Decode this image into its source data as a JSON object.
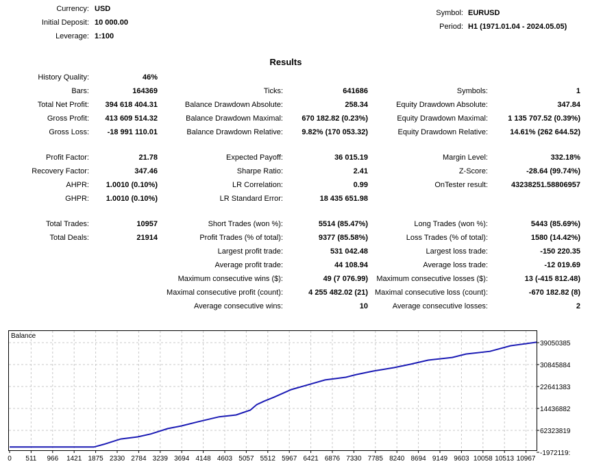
{
  "header": {
    "left": [
      {
        "label": "Currency:",
        "value": "USD"
      },
      {
        "label": "Initial Deposit:",
        "value": "10 000.00"
      },
      {
        "label": "Leverage:",
        "value": "1:100"
      }
    ],
    "right": [
      {
        "label": "Symbol:",
        "value": "EURUSD"
      },
      {
        "label": "Period:",
        "value": "H1 (1971.01.04 - 2024.05.05)"
      }
    ]
  },
  "results": {
    "title": "Results",
    "rows": [
      [
        [
          "History Quality:",
          "46%"
        ],
        null,
        null
      ],
      [
        [
          "Bars:",
          "164369"
        ],
        [
          "Ticks:",
          "641686"
        ],
        [
          "Symbols:",
          "1"
        ]
      ],
      [
        [
          "Total Net Profit:",
          "394 618 404.31"
        ],
        [
          "Balance Drawdown Absolute:",
          "258.34"
        ],
        [
          "Equity Drawdown Absolute:",
          "347.84"
        ]
      ],
      [
        [
          "Gross Profit:",
          "413 609 514.32"
        ],
        [
          "Balance Drawdown Maximal:",
          "670 182.82 (0.23%)"
        ],
        [
          "Equity Drawdown Maximal:",
          "1 135 707.52 (0.39%)"
        ]
      ],
      [
        [
          "Gross Loss:",
          "-18 991 110.01"
        ],
        [
          "Balance Drawdown Relative:",
          "9.82% (170 053.32)"
        ],
        [
          "Equity Drawdown Relative:",
          "14.61% (262 644.52)"
        ]
      ],
      [
        [
          "Profit Factor:",
          "21.78"
        ],
        [
          "Expected Payoff:",
          "36 015.19"
        ],
        [
          "Margin Level:",
          "332.18%"
        ]
      ],
      [
        [
          "Recovery Factor:",
          "347.46"
        ],
        [
          "Sharpe Ratio:",
          "2.41"
        ],
        [
          "Z-Score:",
          "-28.64 (99.74%)"
        ]
      ],
      [
        [
          "AHPR:",
          "1.0010 (0.10%)"
        ],
        [
          "LR Correlation:",
          "0.99"
        ],
        [
          "OnTester result:",
          "43238251.58806957"
        ]
      ],
      [
        [
          "GHPR:",
          "1.0010 (0.10%)"
        ],
        [
          "LR Standard Error:",
          "18 435 651.98"
        ],
        null
      ],
      [
        [
          "Total Trades:",
          "10957"
        ],
        [
          "Short Trades (won %):",
          "5514 (85.47%)"
        ],
        [
          "Long Trades (won %):",
          "5443 (85.69%)"
        ]
      ],
      [
        [
          "Total Deals:",
          "21914"
        ],
        [
          "Profit Trades (% of total):",
          "9377 (85.58%)"
        ],
        [
          "Loss Trades (% of total):",
          "1580 (14.42%)"
        ]
      ],
      [
        null,
        [
          "Largest profit trade:",
          "531 042.48"
        ],
        [
          "Largest loss trade:",
          "-150 220.35"
        ]
      ],
      [
        null,
        [
          "Average profit trade:",
          "44 108.94"
        ],
        [
          "Average loss trade:",
          "-12 019.69"
        ]
      ],
      [
        null,
        [
          "Maximum consecutive wins ($):",
          "49 (7 076.99)"
        ],
        [
          "Maximum consecutive losses ($):",
          "13 (-415 812.48)"
        ]
      ],
      [
        null,
        [
          "Maximal consecutive profit (count):",
          "4 255 482.02 (21)"
        ],
        [
          "Maximal consecutive loss (count):",
          "-670 182.82 (8)"
        ]
      ],
      [
        null,
        [
          "Average consecutive wins:",
          "10"
        ],
        [
          "Average consecutive losses:",
          "2"
        ]
      ]
    ]
  },
  "chart_data": {
    "type": "line",
    "title": "Balance",
    "x_ticks": [
      "0",
      "511",
      "966",
      "1421",
      "1875",
      "2330",
      "2784",
      "3239",
      "3694",
      "4148",
      "4603",
      "5057",
      "5512",
      "5967",
      "6421",
      "6876",
      "7330",
      "7785",
      "8240",
      "8694",
      "9149",
      "9603",
      "10058",
      "10513",
      "10967"
    ],
    "y_ticks": [
      "39050385",
      "30845884",
      "22641383",
      "14436882",
      "62323819",
      "-1972119:"
    ],
    "y_tick_values_millions": [
      390.5,
      308.46,
      226.41,
      144.37,
      62.32,
      -19.72
    ],
    "xlim": [
      0,
      11190
    ],
    "ylim_millions": [
      -19.72,
      410
    ],
    "grid": true,
    "line_color": "#1a1ab4",
    "series": [
      {
        "x": [
          0,
          1790,
          2000,
          2360,
          2720,
          3000,
          3360,
          3650,
          4010,
          4450,
          4810,
          5110,
          5250,
          5400,
          5620,
          5980,
          6340,
          6700,
          7140,
          7360,
          7720,
          8160,
          8520,
          8890,
          9400,
          9690,
          10200,
          10640,
          11190
        ],
        "y_millions": [
          0.01,
          0.01,
          10,
          30,
          38,
          49,
          69,
          79,
          95,
          113,
          120,
          138,
          159,
          171,
          187,
          215,
          233,
          251,
          261,
          271,
          284,
          297,
          310,
          325,
          335,
          348,
          358,
          379,
          392
        ]
      }
    ]
  }
}
